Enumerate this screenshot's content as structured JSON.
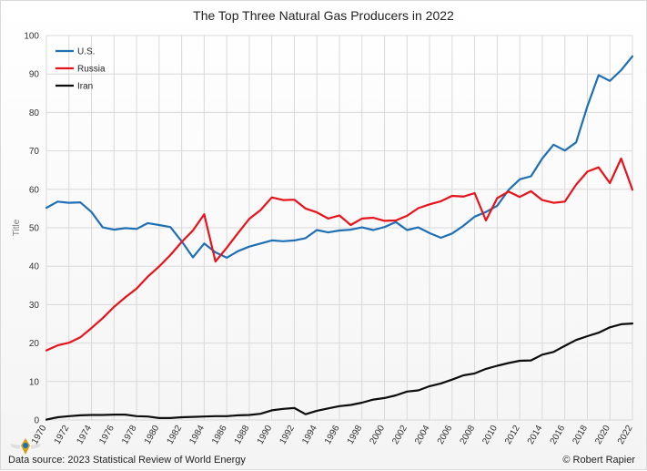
{
  "chart_data": {
    "type": "line",
    "title": "The Top Three Natural Gas Producers in 2022",
    "ylabel": "Title",
    "xlabel": "",
    "ylim": [
      0,
      100
    ],
    "yticks": [
      0,
      10,
      20,
      30,
      40,
      50,
      60,
      70,
      80,
      90,
      100
    ],
    "x": [
      1970,
      1971,
      1972,
      1973,
      1974,
      1975,
      1976,
      1977,
      1978,
      1979,
      1980,
      1981,
      1982,
      1983,
      1984,
      1985,
      1986,
      1987,
      1988,
      1989,
      1990,
      1991,
      1992,
      1993,
      1994,
      1995,
      1996,
      1997,
      1998,
      1999,
      2000,
      2001,
      2002,
      2003,
      2004,
      2005,
      2006,
      2007,
      2008,
      2009,
      2010,
      2011,
      2012,
      2013,
      2014,
      2015,
      2016,
      2017,
      2018,
      2019,
      2020,
      2021,
      2022
    ],
    "xticks": [
      1970,
      1972,
      1974,
      1976,
      1978,
      1980,
      1982,
      1984,
      1986,
      1988,
      1990,
      1992,
      1994,
      1996,
      1998,
      2000,
      2002,
      2004,
      2006,
      2008,
      2010,
      2012,
      2014,
      2016,
      2018,
      2020,
      2022
    ],
    "legend_position": "top-left",
    "series": [
      {
        "name": "U.S.",
        "color": "#1f6fb5",
        "values": [
          55.2,
          56.8,
          56.5,
          56.6,
          54.1,
          50.1,
          49.5,
          49.9,
          49.7,
          51.2,
          50.7,
          50.2,
          46.5,
          42.3,
          45.9,
          43.6,
          42.2,
          43.9,
          45.1,
          45.9,
          46.7,
          46.5,
          46.7,
          47.3,
          49.4,
          48.8,
          49.3,
          49.5,
          50.1,
          49.4,
          50.2,
          51.5,
          49.4,
          50.1,
          48.6,
          47.4,
          48.5,
          50.5,
          52.9,
          54.1,
          55.7,
          59.8,
          62.6,
          63.4,
          68.0,
          71.6,
          70.1,
          72.2,
          81.6,
          89.7,
          88.2,
          91.0,
          94.6
        ]
      },
      {
        "name": "Russia",
        "color": "#e8131a",
        "values": [
          18.1,
          19.4,
          20.1,
          21.5,
          23.9,
          26.5,
          29.4,
          31.9,
          34.2,
          37.3,
          39.9,
          42.9,
          46.3,
          49.3,
          53.5,
          41.2,
          44.8,
          48.6,
          52.3,
          54.6,
          57.9,
          57.2,
          57.3,
          55.0,
          54.0,
          52.4,
          53.2,
          50.7,
          52.4,
          52.6,
          51.8,
          51.9,
          53.1,
          55.1,
          56.1,
          56.9,
          58.3,
          58.1,
          59.0,
          51.9,
          57.7,
          59.4,
          58.0,
          59.5,
          57.2,
          56.5,
          56.8,
          61.2,
          64.6,
          65.7,
          61.6,
          68.0,
          59.9
        ]
      },
      {
        "name": "Iran",
        "color": "#0d0d0d",
        "values": [
          0.1,
          0.7,
          1.0,
          1.2,
          1.3,
          1.3,
          1.4,
          1.4,
          1.0,
          0.9,
          0.5,
          0.5,
          0.7,
          0.8,
          0.9,
          1.0,
          1.0,
          1.2,
          1.3,
          1.6,
          2.5,
          2.9,
          3.1,
          1.5,
          2.4,
          3.0,
          3.6,
          3.9,
          4.5,
          5.3,
          5.7,
          6.4,
          7.4,
          7.7,
          8.8,
          9.5,
          10.5,
          11.6,
          12.1,
          13.3,
          14.1,
          14.8,
          15.4,
          15.5,
          17.0,
          17.7,
          19.3,
          20.8,
          21.8,
          22.7,
          24.1,
          24.9,
          25.1
        ]
      }
    ],
    "footer": {
      "source": "Data source: 2023 Statistical Review of World Energy",
      "credit": "© Robert Rapier"
    }
  }
}
